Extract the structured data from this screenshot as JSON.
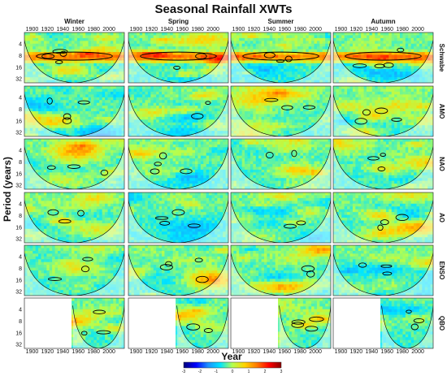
{
  "chart_data": {
    "type": "heatmap",
    "title": "Seasonal Rainfall XWTs",
    "xlabel": "Year",
    "ylabel": "Period (years)",
    "columns": [
      "Winter",
      "Spring",
      "Summer",
      "Autumn"
    ],
    "rows": [
      "Schwabe",
      "AMO",
      "NAO",
      "AO",
      "ENSO",
      "QBO"
    ],
    "x_ticks": [
      "1900",
      "1920",
      "1940",
      "1960",
      "1980",
      "2000"
    ],
    "xlim": [
      1890,
      2020
    ],
    "y_ticks": [
      "4",
      "8",
      "16",
      "32"
    ],
    "y_scale": "log2",
    "colorbar": {
      "ticks": [
        "-3",
        "-2",
        "-1",
        "0",
        "1",
        "2",
        "3"
      ],
      "range": [
        -3,
        3
      ],
      "colors": [
        "#00007a",
        "#0000ff",
        "#1e90ff",
        "#00e5ff",
        "#b4ff50",
        "#ffd400",
        "#ff7a00",
        "#ff0000",
        "#8a0000"
      ]
    },
    "qbo_data_start_year": 1953
  }
}
